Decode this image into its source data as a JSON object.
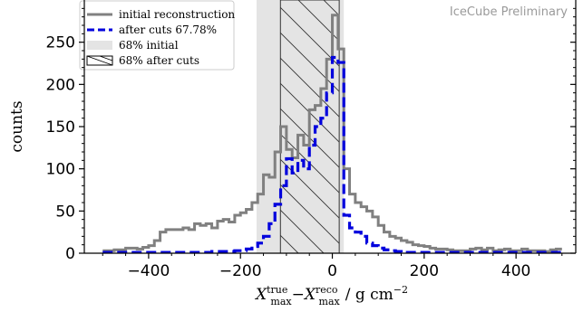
{
  "chart_data": {
    "type": "histogram",
    "watermark": "IceCube Preliminary",
    "xlabel": "X_max^true − X_max^reco / g cm^−2",
    "xlabel_parts": {
      "X": "X",
      "sup1": "true",
      "sub1": "max",
      "minus": "−",
      "sup2": "reco",
      "sub2": "max",
      "unit": "/ g cm",
      "unit_exp": "−2"
    },
    "ylabel": "counts",
    "xlim": [
      -540,
      530
    ],
    "ylim": [
      0,
      300
    ],
    "xticks": [
      -400,
      -200,
      0,
      200,
      400
    ],
    "xtick_labels": [
      "−400",
      "−200",
      "0",
      "200",
      "400"
    ],
    "yticks": [
      0,
      50,
      100,
      150,
      200,
      250
    ],
    "ytick_labels": [
      "0",
      "50",
      "100",
      "150",
      "200",
      "250"
    ],
    "bins": {
      "edges_start": -500,
      "edges_end": 500,
      "width": 12.5
    },
    "bands": {
      "initial_68": [
        -165,
        25
      ],
      "after_cuts_68": [
        -113,
        15
      ]
    },
    "series": [
      {
        "name": "initial reconstruction",
        "style": "step-solid",
        "color": "#808080",
        "values": [
          3,
          3,
          4,
          4,
          6,
          6,
          5,
          7,
          9,
          15,
          25,
          28,
          28,
          28,
          30,
          28,
          35,
          33,
          35,
          30,
          38,
          40,
          37,
          45,
          48,
          52,
          60,
          70,
          93,
          90,
          120,
          150,
          123,
          113,
          140,
          128,
          170,
          175,
          195,
          230,
          282,
          242,
          100,
          70,
          60,
          55,
          50,
          43,
          33,
          25,
          20,
          18,
          15,
          13,
          10,
          9,
          8,
          6,
          5,
          5,
          4,
          3,
          3,
          3,
          5,
          6,
          4,
          6,
          3,
          4,
          5,
          3,
          3,
          5,
          3,
          3,
          3,
          2,
          4,
          5
        ]
      },
      {
        "name": "after cuts 67.78%",
        "style": "step-dashed",
        "color": "#0000dd",
        "values": [
          1,
          1,
          1,
          1,
          1,
          1,
          1,
          1,
          1,
          1,
          1,
          1,
          1,
          1,
          1,
          1,
          1,
          1,
          1,
          2,
          2,
          2,
          2,
          3,
          3,
          5,
          8,
          12,
          20,
          35,
          58,
          80,
          112,
          95,
          110,
          100,
          128,
          150,
          160,
          190,
          232,
          226,
          45,
          30,
          25,
          20,
          12,
          9,
          6,
          4,
          3,
          2,
          1,
          1,
          1,
          1,
          1,
          1,
          1,
          1,
          1,
          1,
          1,
          1,
          1,
          1,
          1,
          1,
          1,
          1,
          1,
          1,
          1,
          1,
          1,
          1,
          1,
          1,
          1,
          1
        ]
      }
    ],
    "legend": {
      "placement": "top-left",
      "entries": [
        {
          "label": "initial reconstruction",
          "kind": "solid-line",
          "color": "#808080"
        },
        {
          "label": "after cuts 67.78%",
          "kind": "dashed-line",
          "color": "#0000dd"
        },
        {
          "label": "68% initial",
          "kind": "filled-patch",
          "color": "#e4e4e4"
        },
        {
          "label": "68% after cuts",
          "kind": "hatched-patch",
          "color": "#000000"
        }
      ]
    }
  }
}
